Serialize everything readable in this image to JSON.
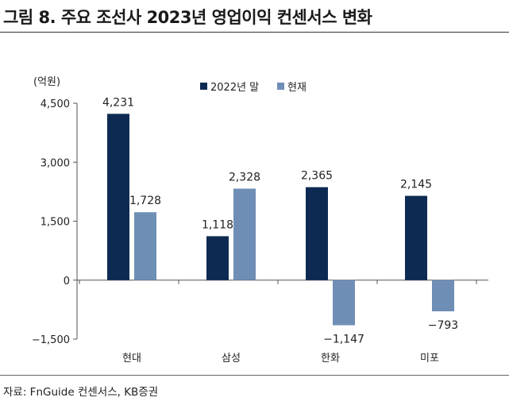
{
  "header": {
    "title": "그림 8. 주요 조선사 2023년 영업이익 컨센서스 변화"
  },
  "footer": {
    "source": "자료: FnGuide 컨센서스, KB증권"
  },
  "colors": {
    "series1": "#0d2b52",
    "series2": "#6f8eb6",
    "axis": "#555555",
    "text": "#222222"
  },
  "chart_data": {
    "type": "bar",
    "unit_label": "(억원)",
    "categories": [
      "현대",
      "삼성",
      "한화",
      "미포"
    ],
    "series": [
      {
        "name": "2022년 말",
        "values": [
          4231,
          1118,
          2365,
          2145
        ],
        "labels": [
          "4,231",
          "1,118",
          "2,365",
          "2,145"
        ]
      },
      {
        "name": "현재",
        "values": [
          1728,
          2328,
          -1147,
          -793
        ],
        "labels": [
          "1,728",
          "2,328",
          "−1,147",
          "−793"
        ]
      }
    ],
    "yticks": [
      4500,
      3000,
      1500,
      0,
      -1500
    ],
    "ytick_labels": [
      "4,500",
      "3,000",
      "1,500",
      "0",
      "−1,500"
    ],
    "ylim": [
      -1500,
      4500
    ],
    "grid": false,
    "legend_position": "top"
  }
}
